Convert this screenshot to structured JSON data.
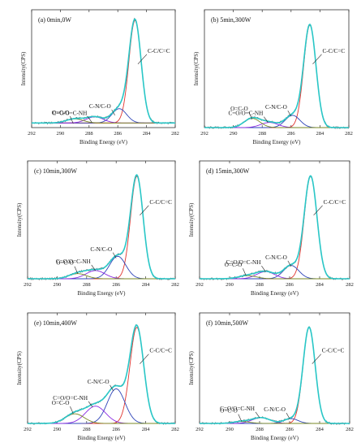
{
  "figure": {
    "xlabel": "Binding Energy (eV)",
    "ylabel": "Intensity(CPS)"
  },
  "colors": {
    "envelope": "#29c7c7",
    "data": "#6e6e6e",
    "cc": "#e0332e",
    "cn": "#2e44b8",
    "coo": "#8a2be2",
    "cooc": "#7a8a25",
    "background": "#d9a23a"
  },
  "chart_data": [
    {
      "type": "line",
      "title": "(a) 0min,0W",
      "xlim": [
        292,
        282
      ],
      "xticks": [
        292,
        290,
        288,
        286,
        284,
        282
      ],
      "ylim": [
        0,
        1.15
      ],
      "baseline": 0.045,
      "series": [
        {
          "name": "C-C/C=C",
          "center": 284.8,
          "fwhm": 1.0,
          "height": 1.0
        },
        {
          "name": "C-N/C-O",
          "center": 285.9,
          "fwhm": 1.2,
          "height": 0.14
        },
        {
          "name": "C=O/O=C-NH",
          "center": 287.6,
          "fwhm": 1.4,
          "height": 0.06
        },
        {
          "name": "O=C-O",
          "center": 289.0,
          "fwhm": 1.4,
          "height": 0.04
        }
      ],
      "annotations": [
        {
          "text": "C-C/C=C",
          "at": [
            284.6,
            0.62
          ]
        },
        {
          "text": "C-N/C-O",
          "at": [
            286.2,
            0.12
          ]
        },
        {
          "text": "C=O/O=C-NH",
          "at": [
            287.8,
            0.05
          ]
        },
        {
          "text": "O=C-O",
          "at": [
            289.1,
            0.04
          ]
        }
      ]
    },
    {
      "type": "line",
      "title": "(b) 5min,300W",
      "xlim": [
        292,
        282
      ],
      "xticks": [
        292,
        290,
        288,
        286,
        284,
        282
      ],
      "ylim": [
        0,
        1.15
      ],
      "baseline": 0.0,
      "series": [
        {
          "name": "C-C/C=C",
          "center": 284.7,
          "fwhm": 1.0,
          "height": 1.0
        },
        {
          "name": "C-N/C-O",
          "center": 285.9,
          "fwhm": 1.2,
          "height": 0.12
        },
        {
          "name": "C=O/O=C-NH",
          "center": 287.5,
          "fwhm": 1.4,
          "height": 0.05
        },
        {
          "name": "O=C-O",
          "center": 288.7,
          "fwhm": 1.3,
          "height": 0.09
        }
      ],
      "annotations": [
        {
          "text": "C-C/C=C",
          "at": [
            284.5,
            0.62
          ]
        },
        {
          "text": "C-N/C-O",
          "at": [
            286.0,
            0.11
          ]
        },
        {
          "text": "C=O/O=C-NH",
          "at": [
            287.6,
            0.05
          ]
        },
        {
          "text": "O=C-O",
          "at": [
            288.7,
            0.08
          ]
        }
      ]
    },
    {
      "type": "line",
      "title": "(c) 10min,300W",
      "xlim": [
        292,
        282
      ],
      "xticks": [
        292,
        290,
        288,
        286,
        284,
        282
      ],
      "ylim": [
        0,
        1.15
      ],
      "baseline": 0.0,
      "series": [
        {
          "name": "C-C/C=C",
          "center": 284.6,
          "fwhm": 1.0,
          "height": 1.0
        },
        {
          "name": "C-N/C-O",
          "center": 285.9,
          "fwhm": 1.3,
          "height": 0.22
        },
        {
          "name": "C=O/O=C-NH",
          "center": 287.4,
          "fwhm": 1.5,
          "height": 0.08
        },
        {
          "name": "O=C-O",
          "center": 288.6,
          "fwhm": 1.4,
          "height": 0.05
        }
      ],
      "annotations": [
        {
          "text": "C-C/C=C",
          "at": [
            284.4,
            0.62
          ]
        },
        {
          "text": "C-N/C-O",
          "at": [
            286.0,
            0.2
          ]
        },
        {
          "text": "C=O/O=C-NH",
          "at": [
            287.4,
            0.08
          ]
        },
        {
          "text": "O=C-O",
          "at": [
            288.6,
            0.05
          ]
        }
      ]
    },
    {
      "type": "line",
      "title": "(d) 15min,300W",
      "xlim": [
        292,
        282
      ],
      "xticks": [
        292,
        290,
        288,
        286,
        284,
        282
      ],
      "ylim": [
        0,
        1.15
      ],
      "baseline": 0.0,
      "series": [
        {
          "name": "C-C/C=C",
          "center": 284.6,
          "fwhm": 1.0,
          "height": 1.0
        },
        {
          "name": "C-N/C-O",
          "center": 285.9,
          "fwhm": 1.2,
          "height": 0.13
        },
        {
          "name": "C=O/O=C-NH",
          "center": 287.6,
          "fwhm": 1.4,
          "height": 0.07
        },
        {
          "name": "O=C-O",
          "center": 288.8,
          "fwhm": 1.4,
          "height": 0.03
        }
      ],
      "annotations": [
        {
          "text": "C-C/C=C",
          "at": [
            284.4,
            0.62
          ]
        },
        {
          "text": "C-N/C-O",
          "at": [
            285.9,
            0.12
          ]
        },
        {
          "text": "C=O/O=C-NH",
          "at": [
            287.6,
            0.07
          ]
        },
        {
          "text": "O=C-O",
          "at": [
            288.9,
            0.03
          ]
        }
      ]
    },
    {
      "type": "line",
      "title": "(e) 10min,400W",
      "xlim": [
        292,
        282
      ],
      "xticks": [
        292,
        290,
        288,
        286,
        284,
        282
      ],
      "ylim": [
        0,
        1.15
      ],
      "baseline": 0.0,
      "series": [
        {
          "name": "C-C/C=C",
          "center": 284.6,
          "fwhm": 1.1,
          "height": 1.0
        },
        {
          "name": "C-N/C-O",
          "center": 286.0,
          "fwhm": 1.4,
          "height": 0.36
        },
        {
          "name": "C=O/O=C-NH",
          "center": 287.4,
          "fwhm": 1.6,
          "height": 0.18
        },
        {
          "name": "O=C-O",
          "center": 288.8,
          "fwhm": 1.5,
          "height": 0.1
        }
      ],
      "annotations": [
        {
          "text": "C-C/C=C",
          "at": [
            284.4,
            0.62
          ]
        },
        {
          "text": "C-N/C-O",
          "at": [
            286.2,
            0.34
          ]
        },
        {
          "text": "C=O/O=C-NH",
          "at": [
            287.6,
            0.17
          ]
        },
        {
          "text": "O=C-O",
          "at": [
            288.9,
            0.1
          ]
        }
      ]
    },
    {
      "type": "line",
      "title": "(f) 10min,500W",
      "xlim": [
        292,
        282
      ],
      "xticks": [
        292,
        290,
        288,
        286,
        284,
        282
      ],
      "ylim": [
        0,
        1.15
      ],
      "baseline": 0.0,
      "series": [
        {
          "name": "C-C/C=C",
          "center": 284.7,
          "fwhm": 0.95,
          "height": 1.0
        },
        {
          "name": "C-N/C-O",
          "center": 285.9,
          "fwhm": 1.1,
          "height": 0.05
        },
        {
          "name": "C=O/O=C-NH",
          "center": 287.9,
          "fwhm": 1.4,
          "height": 0.06
        },
        {
          "name": "O=C-O",
          "center": 289.2,
          "fwhm": 1.3,
          "height": 0.02
        }
      ],
      "annotations": [
        {
          "text": "C-C/C=C",
          "at": [
            284.5,
            0.62
          ]
        },
        {
          "text": "C-N/C-O",
          "at": [
            286.0,
            0.05
          ]
        },
        {
          "text": "C=O/O=C-NH",
          "at": [
            288.0,
            0.06
          ]
        },
        {
          "text": "O=C-O",
          "at": [
            289.2,
            0.02
          ]
        }
      ]
    }
  ]
}
